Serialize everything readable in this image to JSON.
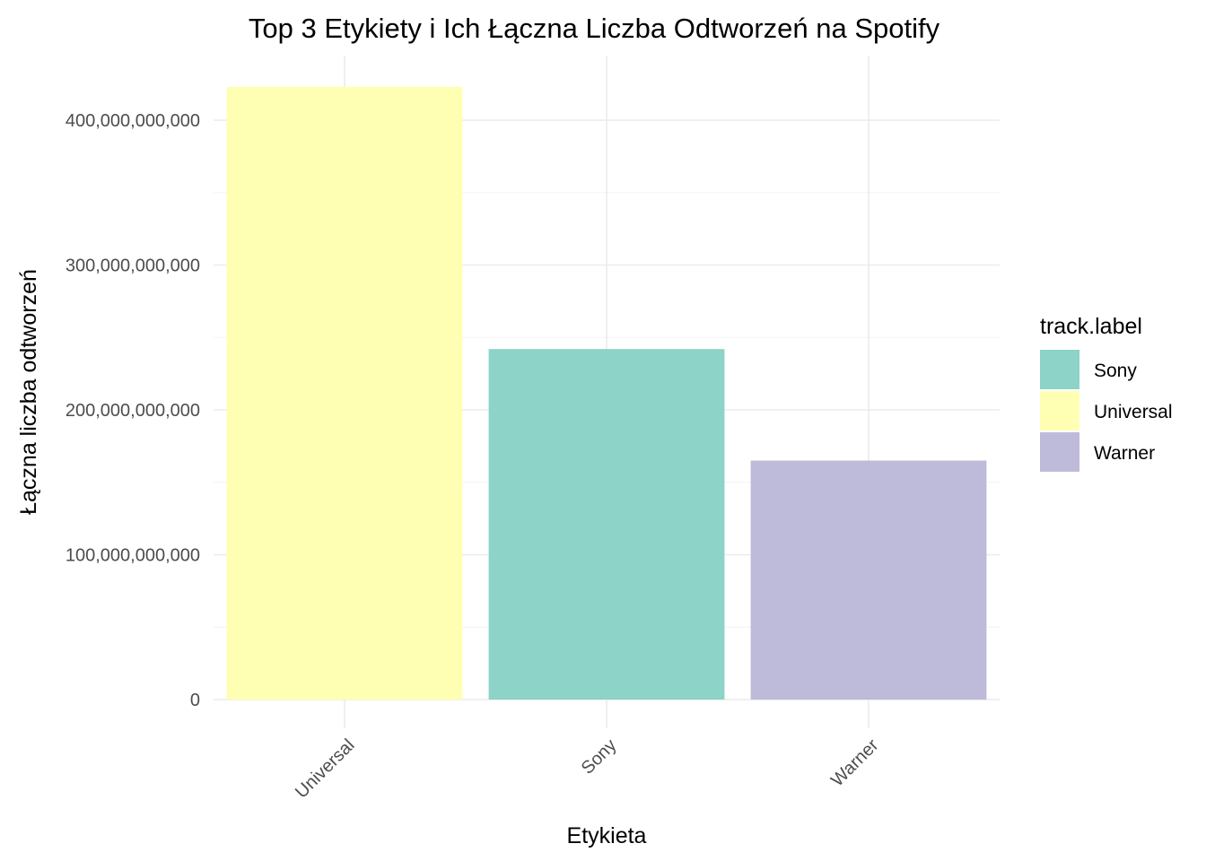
{
  "chart_data": {
    "type": "bar",
    "title": "Top 3 Etykiety i Ich Łączna Liczba Odtworzeń na Spotify",
    "xlabel": "Etykieta",
    "ylabel": "Łączna liczba odtworzeń",
    "categories": [
      "Universal",
      "Sony",
      "Warner"
    ],
    "values": [
      423000000000,
      242000000000,
      165000000000
    ],
    "colors": [
      "#FFFFB3",
      "#8DD3C7",
      "#BEBADA"
    ],
    "ylim": [
      0,
      430000000000
    ],
    "yticks": [
      0,
      100000000000,
      200000000000,
      300000000000,
      400000000000
    ],
    "ytick_labels": [
      "0",
      "100,000,000,000",
      "200,000,000,000",
      "300,000,000,000",
      "400,000,000,000"
    ],
    "grid": true,
    "legend": {
      "title": "track.label",
      "placement": "right",
      "entries": [
        {
          "label": "Sony",
          "color": "#8DD3C7"
        },
        {
          "label": "Universal",
          "color": "#FFFFB3"
        },
        {
          "label": "Warner",
          "color": "#BEBADA"
        }
      ]
    }
  }
}
